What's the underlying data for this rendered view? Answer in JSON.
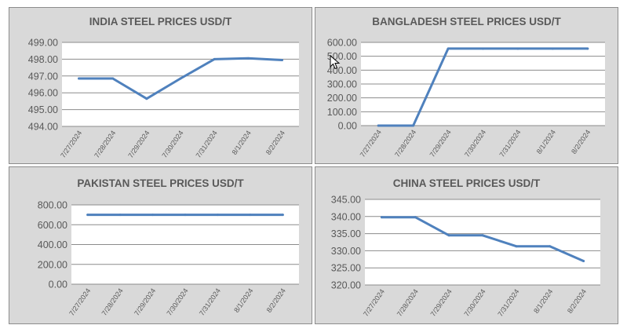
{
  "chart_data": [
    {
      "type": "line",
      "title": "INDIA STEEL PRICES USD/T",
      "categories": [
        "7/27/2024",
        "7/28/2024",
        "7/29/2024",
        "7/30/2024",
        "7/31/2024",
        "8/1/2024",
        "8/2/2024"
      ],
      "values": [
        496.85,
        496.85,
        495.65,
        496.85,
        498.0,
        498.05,
        497.95
      ],
      "ylim": [
        494,
        499
      ],
      "yticks": [
        "494.00",
        "495.00",
        "496.00",
        "497.00",
        "498.00",
        "499.00"
      ],
      "grid": true,
      "legend": "none",
      "line_color": "#4f81bd"
    },
    {
      "type": "line",
      "title": "BANGLADESH STEEL PRICES USD/T",
      "categories": [
        "7/27/2024",
        "7/28/2024",
        "7/29/2024",
        "7/30/2024",
        "7/31/2024",
        "8/1/2024",
        "8/2/2024"
      ],
      "values": [
        0,
        0,
        555,
        555,
        555,
        555,
        555
      ],
      "ylim": [
        0,
        600
      ],
      "yticks": [
        "0.00",
        "100.00",
        "200.00",
        "300.00",
        "400.00",
        "500.00",
        "600.00"
      ],
      "grid": true,
      "legend": "none",
      "line_color": "#4f81bd"
    },
    {
      "type": "line",
      "title": "PAKISTAN STEEL PRICES USD/T",
      "categories": [
        "7/27/2024",
        "7/28/2024",
        "7/29/2024",
        "7/30/2024",
        "7/31/2024",
        "8/1/2024",
        "8/2/2024"
      ],
      "values": [
        700,
        700,
        700,
        700,
        700,
        700,
        700
      ],
      "ylim": [
        0,
        800
      ],
      "yticks": [
        "0.00",
        "200.00",
        "400.00",
        "600.00",
        "800.00"
      ],
      "grid": true,
      "legend": "none",
      "line_color": "#4f81bd"
    },
    {
      "type": "line",
      "title": "CHINA STEEL PRICES USD/T",
      "categories": [
        "7/27/2024",
        "7/28/2024",
        "7/29/2024",
        "7/30/2024",
        "7/31/2024",
        "8/1/2024",
        "8/2/2024"
      ],
      "values": [
        339.8,
        339.8,
        334.5,
        334.5,
        331.3,
        331.3,
        327.0
      ],
      "ylim": [
        320,
        345
      ],
      "yticks": [
        "320.00",
        "325.00",
        "330.00",
        "335.00",
        "340.00",
        "345.00"
      ],
      "grid": true,
      "legend": "none",
      "line_color": "#4f81bd"
    }
  ]
}
